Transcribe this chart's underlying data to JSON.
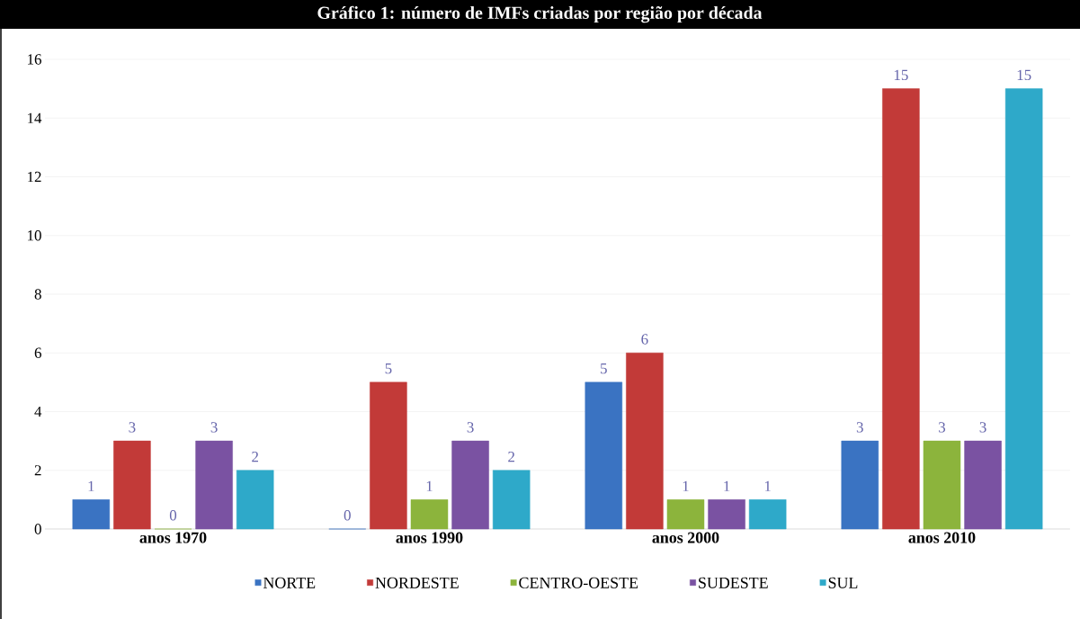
{
  "chart_data": {
    "type": "bar",
    "title": "Gráfico 1: número de IMFs criadas por região por década",
    "categories": [
      "anos 1970",
      "anos 1990",
      "anos 2000",
      "anos 2010"
    ],
    "series": [
      {
        "name": "NORTE",
        "color": "#3a73c2",
        "values": [
          1,
          0,
          5,
          3
        ]
      },
      {
        "name": "NORDESTE",
        "color": "#c23a38",
        "values": [
          3,
          5,
          6,
          15
        ]
      },
      {
        "name": "CENTRO-OESTE",
        "color": "#8cb43c",
        "values": [
          0,
          1,
          1,
          3
        ]
      },
      {
        "name": "SUDESTE",
        "color": "#7a52a2",
        "values": [
          3,
          3,
          1,
          3
        ]
      },
      {
        "name": "SUL",
        "color": "#2ea9c9",
        "values": [
          2,
          2,
          1,
          15
        ]
      }
    ],
    "ylim": [
      0,
      16
    ],
    "yticks": [
      0,
      2,
      4,
      6,
      8,
      10,
      12,
      14,
      16
    ],
    "grid": "y",
    "legend": "bottom",
    "data_labels": true
  }
}
